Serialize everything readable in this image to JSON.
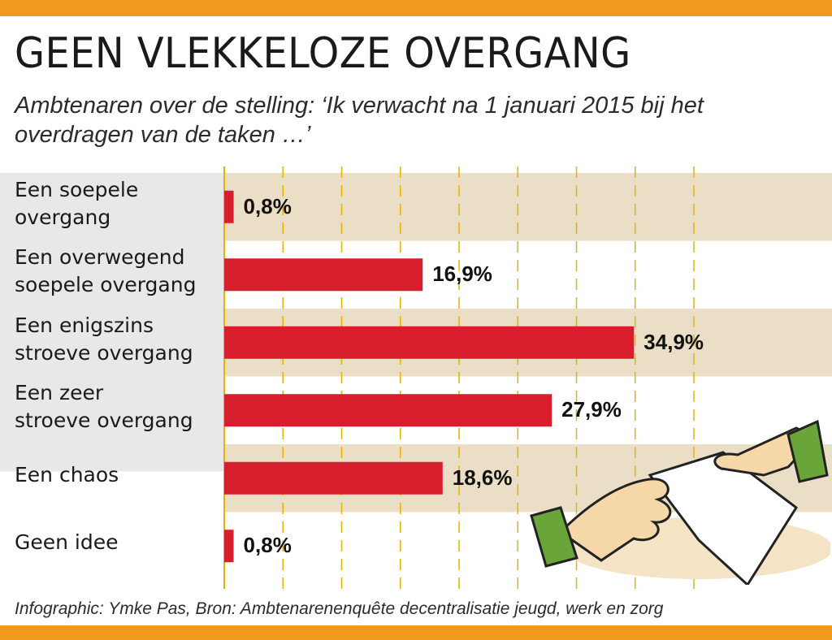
{
  "colors": {
    "accent_stripe": "#f39a1e",
    "bar": "#d81e2c",
    "band": "#eadfc6",
    "gridline": "#e6b400",
    "left_panel": "#e8e8e8"
  },
  "chart_data": {
    "type": "bar",
    "orientation": "horizontal",
    "title": "GEEN VLEKKELOZE OVERGANG",
    "subtitle": "Ambtenaren over de stelling: ‘Ik verwacht na 1 januari 2015 bij het overdragen van de taken …’",
    "categories": [
      "Een soepele\novergang",
      "Een overwegend\nsoepele overgang",
      "Een enigszins\nstroeve overgang",
      "Een zeer\nstroeve overgang",
      "Een chaos",
      "Geen idee"
    ],
    "values": [
      0.8,
      16.9,
      34.9,
      27.9,
      18.6,
      0.8
    ],
    "value_labels": [
      "0,8%",
      "16,9%",
      "34,9%",
      "27,9%",
      "18,6%",
      "0,8%"
    ],
    "unit": "%",
    "xlim": [
      0,
      40
    ],
    "grid": true
  },
  "source": "Infographic: Ymke Pas, Bron: Ambtenarenenquête decentralisatie jeugd, werk en zorg"
}
